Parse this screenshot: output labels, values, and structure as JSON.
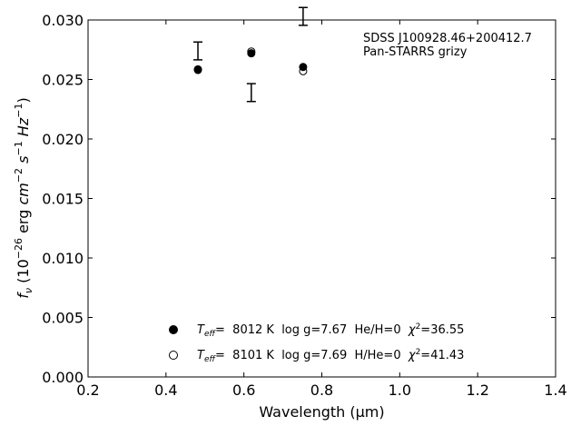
{
  "chart_data": {
    "type": "scatter",
    "title": "",
    "xlabel": "Wavelength (μm)",
    "ylabel": "f_ν (10^-26 erg cm^-2 s^-1 Hz^-1)",
    "xlim": [
      0.2,
      1.4
    ],
    "ylim": [
      0.0,
      0.03
    ],
    "x_ticks": [
      0.2,
      0.4,
      0.6,
      0.8,
      1.0,
      1.2,
      1.4
    ],
    "x_tick_labels": [
      "0.2",
      "0.4",
      "0.6",
      "0.8",
      "1.0",
      "1.2",
      "1.4"
    ],
    "y_ticks": [
      0.0,
      0.005,
      0.01,
      0.015,
      0.02,
      0.025,
      0.03
    ],
    "y_tick_labels": [
      "0.000",
      "0.005",
      "0.010",
      "0.015",
      "0.020",
      "0.025",
      "0.030"
    ],
    "grid": false,
    "annotation": {
      "object": "SDSS J100928.46+200412.7",
      "survey": "Pan-STARRS grizy"
    },
    "observed": {
      "x": [
        0.482,
        0.619,
        0.752
      ],
      "y": [
        0.0274,
        0.0239,
        0.0303
      ],
      "yerr": [
        0.00075,
        0.00075,
        0.00075
      ]
    },
    "series": [
      {
        "marker": "filled-circle",
        "x": [
          0.482,
          0.619,
          0.752
        ],
        "y": [
          0.02585,
          0.0272,
          0.02605
        ],
        "legend": {
          "teff_value": "8012 K",
          "logg": "log g=7.67",
          "comp": "He/H=0",
          "chi2": "=36.55"
        }
      },
      {
        "marker": "open-circle",
        "x": [
          0.482,
          0.619,
          0.752
        ],
        "y": [
          0.0258,
          0.02735,
          0.0257
        ],
        "legend": {
          "teff_value": "8101 K",
          "logg": "log g=7.69",
          "comp": "H/He=0",
          "chi2": "=41.43"
        }
      }
    ],
    "legend_position": "bottom-center"
  }
}
